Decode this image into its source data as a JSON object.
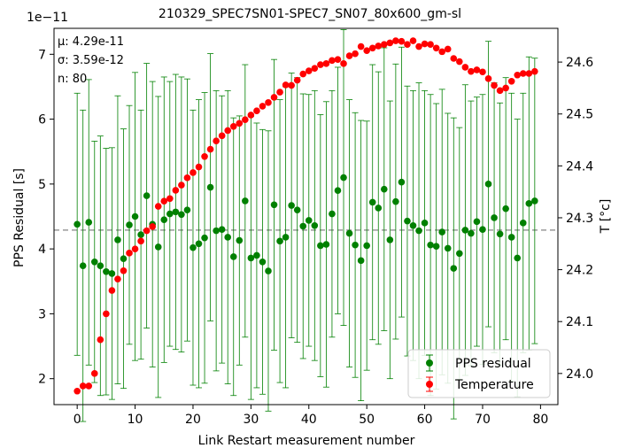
{
  "chart_data": {
    "type": "scatter",
    "title": "210329_SPEC7SN01-SPEC7_SN07_80x600_gm-sl",
    "xlabel": "Link Restart measurement number",
    "ylabel_left": "PPS Residual [s]",
    "ylabel_right": "T [°c]",
    "left_axis_offset": "1e−11",
    "xlim": [
      -4,
      83
    ],
    "ylim_left": [
      1.6,
      7.4
    ],
    "ylim_right": [
      23.94,
      24.665
    ],
    "x_ticks": [
      0,
      10,
      20,
      30,
      40,
      50,
      60,
      70,
      80
    ],
    "y_ticks_left": [
      2,
      3,
      4,
      5,
      6,
      7
    ],
    "y_ticks_right": [
      24.0,
      24.1,
      24.2,
      24.3,
      24.4,
      24.5,
      24.6
    ],
    "stats": [
      "μ: 4.29e-11",
      "σ: 3.59e-12",
      "n: 80"
    ],
    "mean_line": 4.29,
    "legend_position": "lower-right",
    "legend": [
      "PPS residual",
      "Temperature"
    ],
    "colors": {
      "pps": "#008000",
      "temperature": "#ff0000",
      "mean_line": "#999999"
    },
    "series": [
      {
        "name": "PPS residual",
        "axis": "left",
        "x": [
          0,
          1,
          2,
          3,
          4,
          5,
          6,
          7,
          8,
          9,
          10,
          11,
          12,
          13,
          14,
          15,
          16,
          17,
          18,
          19,
          20,
          21,
          22,
          23,
          24,
          25,
          26,
          27,
          28,
          29,
          30,
          31,
          32,
          33,
          34,
          35,
          36,
          37,
          38,
          39,
          40,
          41,
          42,
          43,
          44,
          45,
          46,
          47,
          48,
          49,
          50,
          51,
          52,
          53,
          54,
          55,
          56,
          57,
          58,
          59,
          60,
          61,
          62,
          63,
          64,
          65,
          66,
          67,
          68,
          69,
          70,
          71,
          72,
          73,
          74,
          75,
          76,
          77,
          78,
          79
        ],
        "y": [
          4.38,
          3.74,
          4.41,
          3.8,
          3.74,
          3.65,
          3.62,
          4.14,
          3.85,
          4.37,
          4.5,
          4.22,
          4.82,
          4.38,
          4.03,
          4.45,
          4.54,
          4.57,
          4.53,
          4.6,
          4.02,
          4.08,
          4.17,
          4.95,
          4.28,
          4.3,
          4.18,
          3.88,
          4.13,
          4.74,
          3.86,
          3.9,
          3.8,
          3.66,
          4.68,
          4.12,
          4.18,
          4.67,
          4.6,
          4.35,
          4.44,
          4.36,
          4.05,
          4.07,
          4.54,
          4.9,
          5.1,
          4.24,
          4.06,
          3.82,
          4.05,
          4.72,
          4.63,
          4.92,
          4.14,
          4.73,
          5.03,
          4.43,
          4.36,
          4.28,
          4.4,
          4.06,
          4.04,
          4.26,
          4.01,
          3.7,
          3.93,
          4.29,
          4.24,
          4.42,
          4.3,
          5.0,
          4.48,
          4.23,
          4.62,
          4.18,
          3.86,
          4.4,
          4.7,
          4.74
        ],
        "yerr": [
          2.02,
          2.4,
          2.2,
          1.86,
          2.0,
          1.9,
          1.94,
          2.22,
          2.0,
          1.84,
          2.22,
          1.92,
          2.04,
          2.2,
          2.32,
          2.2,
          2.04,
          2.12,
          2.12,
          2.02,
          2.12,
          2.22,
          2.24,
          2.06,
          2.16,
          2.06,
          2.26,
          2.14,
          1.92,
          2.1,
          2.18,
          2.04,
          2.04,
          2.16,
          2.24,
          2.18,
          2.32,
          2.04,
          2.04,
          2.04,
          1.94,
          2.08,
          2.02,
          2.2,
          1.9,
          1.9,
          2.28,
          2.06,
          2.04,
          2.16,
          1.92,
          2.12,
          2.1,
          2.18,
          2.14,
          2.12,
          2.08,
          2.08,
          2.08,
          2.28,
          2.04,
          2.32,
          2.2,
          2.2,
          2.08,
          2.32,
          1.94,
          2.24,
          2.04,
          1.92,
          2.08,
          2.2,
          2.08,
          2.02,
          2.02,
          2.22,
          2.14,
          2.0,
          2.26,
          2.2
        ]
      },
      {
        "name": "Temperature",
        "axis": "right",
        "x": [
          0,
          1,
          2,
          3,
          4,
          5,
          6,
          7,
          8,
          9,
          10,
          11,
          12,
          13,
          14,
          15,
          16,
          17,
          18,
          19,
          20,
          21,
          22,
          23,
          24,
          25,
          26,
          27,
          28,
          29,
          30,
          31,
          32,
          33,
          34,
          35,
          36,
          37,
          38,
          39,
          40,
          41,
          42,
          43,
          44,
          45,
          46,
          47,
          48,
          49,
          50,
          51,
          52,
          53,
          54,
          55,
          56,
          57,
          58,
          59,
          60,
          61,
          62,
          63,
          64,
          65,
          66,
          67,
          68,
          69,
          70,
          71,
          72,
          73,
          74,
          75,
          76,
          77,
          78,
          79
        ],
        "y": [
          23.966,
          23.976,
          23.976,
          24.0,
          24.065,
          24.115,
          24.16,
          24.182,
          24.198,
          24.232,
          24.24,
          24.255,
          24.275,
          24.283,
          24.322,
          24.332,
          24.337,
          24.353,
          24.363,
          24.377,
          24.387,
          24.398,
          24.418,
          24.432,
          24.448,
          24.458,
          24.468,
          24.476,
          24.482,
          24.489,
          24.498,
          24.506,
          24.515,
          24.522,
          24.532,
          24.542,
          24.556,
          24.555,
          24.565,
          24.577,
          24.583,
          24.588,
          24.595,
          24.597,
          24.603,
          24.605,
          24.597,
          24.612,
          24.616,
          24.63,
          24.622,
          24.627,
          24.631,
          24.634,
          24.637,
          24.641,
          24.64,
          24.634,
          24.641,
          24.63,
          24.635,
          24.634,
          24.627,
          24.62,
          24.625,
          24.607,
          24.601,
          24.59,
          24.582,
          24.585,
          24.581,
          24.568,
          24.555,
          24.545,
          24.55,
          24.563,
          24.575,
          24.578,
          24.578,
          24.582
        ]
      }
    ]
  }
}
